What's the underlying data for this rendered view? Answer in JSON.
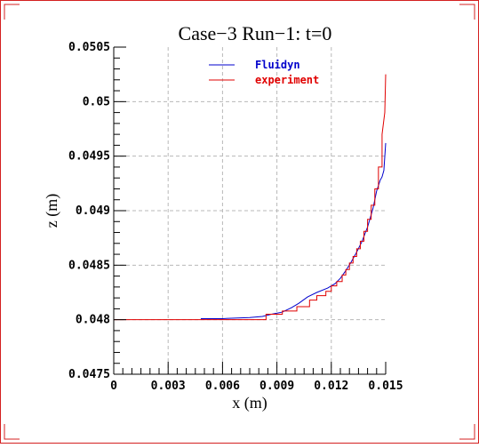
{
  "chart_data": {
    "type": "line",
    "title": "Case−3 Run−1: t=0",
    "xlabel": "x (m)",
    "ylabel": "z (m)",
    "xlim": [
      0,
      0.015
    ],
    "ylim": [
      0.0475,
      0.0505
    ],
    "xticks": [
      "0",
      "0.003",
      "0.006",
      "0.009",
      "0.012",
      "0.015"
    ],
    "yticks": [
      "0.0475",
      "0.048",
      "0.0485",
      "0.049",
      "0.0495",
      "0.05",
      "0.0505"
    ],
    "grid": true,
    "legend_position": "top-center",
    "series": [
      {
        "name": "Fluidyn",
        "color": "#0000cc",
        "points": [
          [
            0.0048,
            0.04801
          ],
          [
            0.006,
            0.04801
          ],
          [
            0.0075,
            0.04802
          ],
          [
            0.0082,
            0.04803
          ],
          [
            0.0087,
            0.04805
          ],
          [
            0.0093,
            0.04807
          ],
          [
            0.0098,
            0.04811
          ],
          [
            0.0102,
            0.04815
          ],
          [
            0.0107,
            0.04821
          ],
          [
            0.0112,
            0.04825
          ],
          [
            0.0118,
            0.04829
          ],
          [
            0.0122,
            0.04833
          ],
          [
            0.0125,
            0.04838
          ],
          [
            0.0128,
            0.04845
          ],
          [
            0.0131,
            0.04853
          ],
          [
            0.0134,
            0.04862
          ],
          [
            0.0137,
            0.04872
          ],
          [
            0.014,
            0.04885
          ],
          [
            0.0143,
            0.04902
          ],
          [
            0.0145,
            0.04918
          ],
          [
            0.0147,
            0.04928
          ],
          [
            0.0148,
            0.04931
          ],
          [
            0.0149,
            0.04937
          ],
          [
            0.015,
            0.04962
          ]
        ]
      },
      {
        "name": "experiment",
        "color": "#e00000",
        "points": [
          [
            0.0,
            0.048
          ],
          [
            0.0084,
            0.048
          ],
          [
            0.0084,
            0.04805
          ],
          [
            0.0093,
            0.04805
          ],
          [
            0.0093,
            0.04808
          ],
          [
            0.0101,
            0.04808
          ],
          [
            0.0101,
            0.04812
          ],
          [
            0.0108,
            0.04812
          ],
          [
            0.0108,
            0.04818
          ],
          [
            0.0112,
            0.04818
          ],
          [
            0.0112,
            0.04822
          ],
          [
            0.0117,
            0.04822
          ],
          [
            0.0117,
            0.04826
          ],
          [
            0.012,
            0.04826
          ],
          [
            0.012,
            0.04831
          ],
          [
            0.0123,
            0.04831
          ],
          [
            0.0123,
            0.04835
          ],
          [
            0.0126,
            0.04835
          ],
          [
            0.0126,
            0.04841
          ],
          [
            0.0128,
            0.04841
          ],
          [
            0.0128,
            0.04846
          ],
          [
            0.013,
            0.04846
          ],
          [
            0.013,
            0.04852
          ],
          [
            0.0132,
            0.04852
          ],
          [
            0.0132,
            0.04858
          ],
          [
            0.0134,
            0.04858
          ],
          [
            0.0134,
            0.04865
          ],
          [
            0.0136,
            0.04865
          ],
          [
            0.0136,
            0.04872
          ],
          [
            0.0138,
            0.04872
          ],
          [
            0.0138,
            0.04881
          ],
          [
            0.014,
            0.04881
          ],
          [
            0.014,
            0.04892
          ],
          [
            0.0142,
            0.04892
          ],
          [
            0.0142,
            0.04905
          ],
          [
            0.0144,
            0.04905
          ],
          [
            0.0144,
            0.0492
          ],
          [
            0.0146,
            0.0492
          ],
          [
            0.0146,
            0.0494
          ],
          [
            0.0148,
            0.0494
          ],
          [
            0.0148,
            0.0497
          ],
          [
            0.01495,
            0.0499
          ],
          [
            0.015,
            0.05025
          ]
        ]
      }
    ]
  }
}
